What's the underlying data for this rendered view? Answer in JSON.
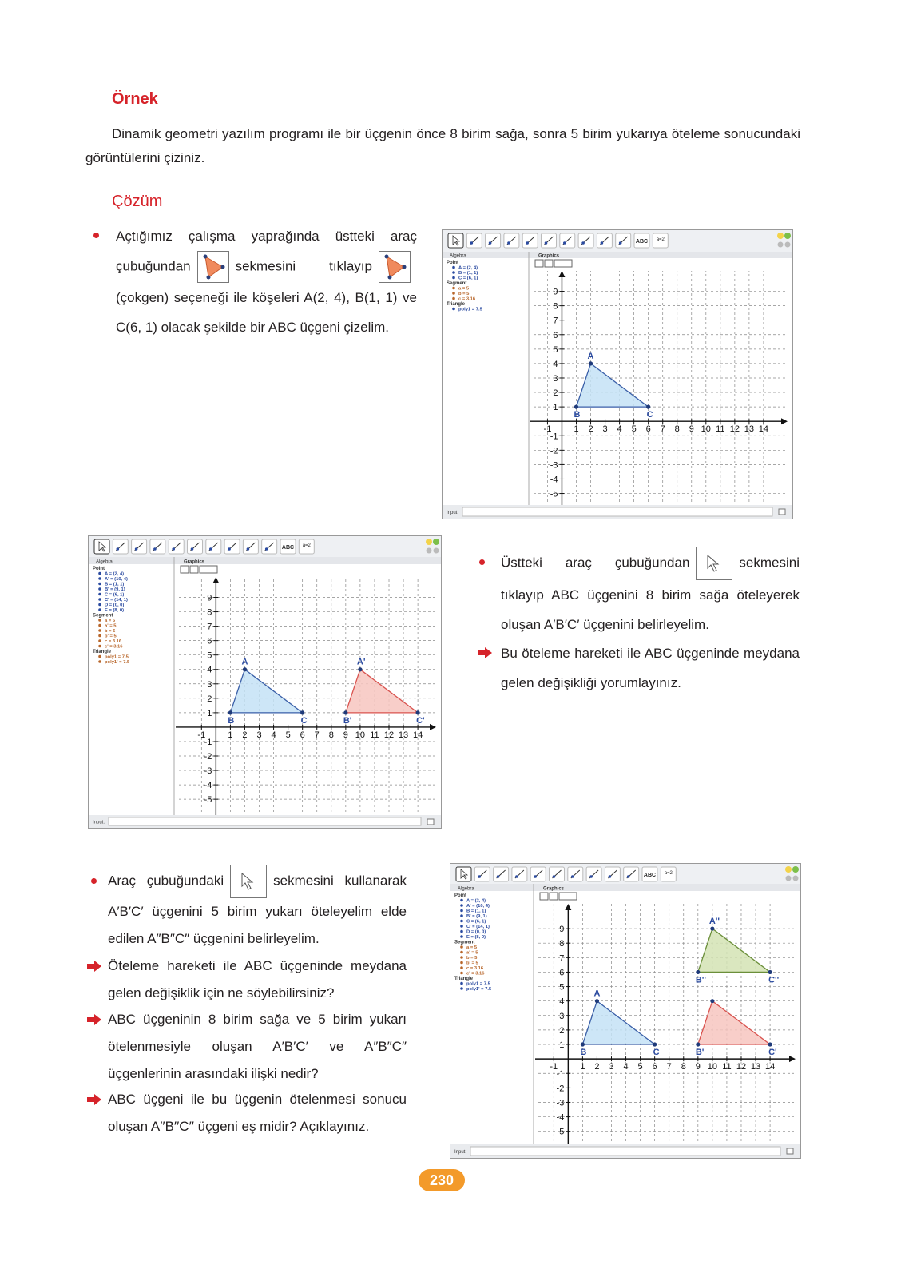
{
  "example": {
    "title": "Örnek",
    "text": "Dinamik geometri yazılım programı ile bir üçgenin önce 8 birim sağa, sonra 5 birim yukarıya öteleme sonucundaki görüntülerini çiziniz."
  },
  "solution": {
    "title": "Çözüm"
  },
  "step1": {
    "parts": [
      "Açtığımız çalışma yaprağında üstteki araç çubuğundan",
      "sekmesini tıklayıp",
      "(çokgen) seçeneği ile köşeleri A(2, 4), B(1, 1) ve C(6, 1) olacak şekilde bir ABC üçgeni çizelim."
    ]
  },
  "step2": {
    "parts": [
      "Üstteki araç çubuğundan",
      "sekmesini tıklayıp ABC üçgenini 8 birim sağa öteleyerek oluşan A′B′C′ üçgenini belirleyelim."
    ],
    "questions": [
      "Bu öteleme hareketi ile ABC üçgeninde meydana gelen değişikliği yorumlayınız."
    ]
  },
  "step3": {
    "parts": [
      "Araç çubuğundaki",
      "sekmesini kullanarak A′B′C′ üçgenini 5 birim yukarı öteleyelim elde edilen A″B″C″ üçgenini belirleyelim."
    ],
    "questions": [
      "Öteleme hareketi ile ABC üçgeninde meydana gelen değişiklik için ne söylebilirsiniz?",
      "ABC üçgeninin 8 birim sağa ve 5 birim yukarı ötelenmesiyle oluşan A′B′C′ ve A″B″C″ üçgenlerinin arasındaki ilişki nedir?",
      "ABC üçgeni ile bu üçgenin ötelenmesi sonucu oluşan A′′B′′C′′ üçgeni eş midir? Açıklayınız."
    ]
  },
  "screens": [
    {
      "toolbar": {
        "text_tool": "ABC",
        "slider_tool": "a=2"
      },
      "algebra_title": "Algebra",
      "graphics_title": "Graphics",
      "input_label": "Input:",
      "algebra": [
        {
          "group": "Point",
          "color": "#2a4aa0",
          "items": [
            "A = (2, 4)",
            "B = (1, 1)",
            "C = (6, 1)"
          ]
        },
        {
          "group": "Segment",
          "color": "#b8662a",
          "items": [
            "a = 5",
            "b = 5",
            "c = 3.16"
          ]
        },
        {
          "group": "Triangle",
          "color": "#2a4aa0",
          "items": [
            "poly1 = 7.5"
          ]
        }
      ],
      "xlim": [
        -2.3,
        16
      ],
      "ylim": [
        -5.8,
        11.3
      ],
      "xticks": [
        -1,
        1,
        2,
        3,
        4,
        5,
        6,
        7,
        8,
        9,
        10,
        11,
        12,
        13,
        14
      ],
      "yticks": [
        -5,
        -4,
        -3,
        -2,
        -1,
        1,
        2,
        3,
        4,
        5,
        6,
        7,
        8,
        9
      ],
      "triangles": [
        {
          "fill": "#c4e2f6",
          "stroke": "#3a5fa8",
          "points": [
            {
              "label": "A",
              "x": 2,
              "y": 4
            },
            {
              "label": "B",
              "x": 1,
              "y": 1
            },
            {
              "label": "C",
              "x": 6,
              "y": 1
            }
          ]
        }
      ]
    },
    {
      "toolbar": {
        "text_tool": "ABC",
        "slider_tool": "a=2"
      },
      "algebra_title": "Algebra",
      "graphics_title": "Graphics",
      "input_label": "Input:",
      "algebra": [
        {
          "group": "Point",
          "color": "#2a4aa0",
          "items": [
            "A = (2, 4)",
            "A' = (10, 4)",
            "B = (1, 1)",
            "B' = (9, 1)",
            "C = (6, 1)",
            "C' = (14, 1)",
            "D = (0, 0)",
            "E = (8, 0)"
          ]
        },
        {
          "group": "Segment",
          "color": "#b8662a",
          "items": [
            "a = 5",
            "a' = 5",
            "b = 5",
            "b' = 5",
            "c = 3.16",
            "c' = 3.16"
          ]
        },
        {
          "group": "Triangle",
          "color": "#b8662a",
          "items": [
            "poly1 = 7.5",
            "poly1' = 7.5"
          ]
        }
      ],
      "xlim": [
        -2.9,
        15.6
      ],
      "ylim": [
        -6.1,
        11.3
      ],
      "xticks": [
        -1,
        1,
        2,
        3,
        4,
        5,
        6,
        7,
        8,
        9,
        10,
        11,
        12,
        13,
        14
      ],
      "yticks": [
        -5,
        -4,
        -3,
        -2,
        -1,
        1,
        2,
        3,
        4,
        5,
        6,
        7,
        8,
        9
      ],
      "triangles": [
        {
          "fill": "#c4e2f6",
          "stroke": "#3a5fa8",
          "points": [
            {
              "label": "A",
              "x": 2,
              "y": 4
            },
            {
              "label": "B",
              "x": 1,
              "y": 1
            },
            {
              "label": "C",
              "x": 6,
              "y": 1
            }
          ]
        },
        {
          "fill": "#f7c6bf",
          "stroke": "#d9534f",
          "points": [
            {
              "label": "A'",
              "x": 10,
              "y": 4
            },
            {
              "label": "B'",
              "x": 9,
              "y": 1
            },
            {
              "label": "C'",
              "x": 14,
              "y": 1
            }
          ]
        }
      ]
    },
    {
      "toolbar": {
        "text_tool": "ABC",
        "slider_tool": "a=2"
      },
      "algebra_title": "Algebra",
      "graphics_title": "Graphics",
      "input_label": "Input:",
      "algebra": [
        {
          "group": "Point",
          "color": "#2a4aa0",
          "items": [
            "A = (2, 4)",
            "A' = (10, 4)",
            "B = (1, 1)",
            "B' = (9, 1)",
            "C = (6, 1)",
            "C' = (14, 1)",
            "D = (0, 0)",
            "E = (8, 0)"
          ]
        },
        {
          "group": "Segment",
          "color": "#b8662a",
          "items": [
            "a = 5",
            "a' = 5",
            "b = 5",
            "b' = 5",
            "c = 3.16",
            "c' = 3.16"
          ]
        },
        {
          "group": "Triangle",
          "color": "#2a4aa0",
          "items": [
            "poly1 = 7.5",
            "poly1' = 7.5"
          ]
        }
      ],
      "xlim": [
        -2.4,
        16.1
      ],
      "ylim": [
        -5.9,
        11.6
      ],
      "xticks": [
        -1,
        1,
        2,
        3,
        4,
        5,
        6,
        7,
        8,
        9,
        10,
        11,
        12,
        13,
        14
      ],
      "yticks": [
        -5,
        -4,
        -3,
        -2,
        -1,
        1,
        2,
        3,
        4,
        5,
        6,
        7,
        8,
        9
      ],
      "triangles": [
        {
          "fill": "#c4e2f6",
          "stroke": "#3a5fa8",
          "points": [
            {
              "label": "A",
              "x": 2,
              "y": 4
            },
            {
              "label": "B",
              "x": 1,
              "y": 1
            },
            {
              "label": "C",
              "x": 6,
              "y": 1
            }
          ]
        },
        {
          "fill": "#f7c6bf",
          "stroke": "#d9534f",
          "points": [
            {
              "label": null,
              "x": 10,
              "y": 4
            },
            {
              "label": "B'",
              "x": 9,
              "y": 1
            },
            {
              "label": "C'",
              "x": 14,
              "y": 1
            }
          ]
        },
        {
          "fill": "#d3e3b4",
          "stroke": "#6b8f3a",
          "points": [
            {
              "label": "A''",
              "x": 10,
              "y": 9
            },
            {
              "label": "B''",
              "x": 9,
              "y": 6
            },
            {
              "label": "C''",
              "x": 14,
              "y": 6
            }
          ]
        }
      ]
    }
  ],
  "page_number": 230
}
